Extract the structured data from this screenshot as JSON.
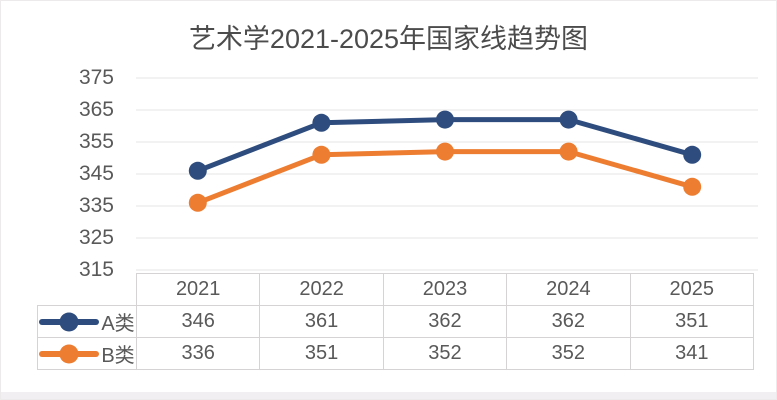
{
  "chart_data": {
    "type": "line",
    "title": "艺术学2021-2025年国家线趋势图",
    "categories": [
      "2021",
      "2022",
      "2023",
      "2024",
      "2025"
    ],
    "series": [
      {
        "name": "A类",
        "color": "#2e4d7e",
        "values": [
          346,
          361,
          362,
          362,
          351
        ]
      },
      {
        "name": "B类",
        "color": "#ed7d31",
        "values": [
          336,
          351,
          352,
          352,
          341
        ]
      }
    ],
    "ylim": [
      315,
      375
    ],
    "yticks": [
      "375",
      "365",
      "355",
      "345",
      "335",
      "325",
      "315"
    ],
    "grid": true,
    "legend_position": "table-left",
    "marker": "circle",
    "colors": {
      "gridline": "#e4e4e4",
      "axis_text": "#595959",
      "title_text": "#4c4c4c",
      "table_border": "#d5d3d3"
    }
  }
}
